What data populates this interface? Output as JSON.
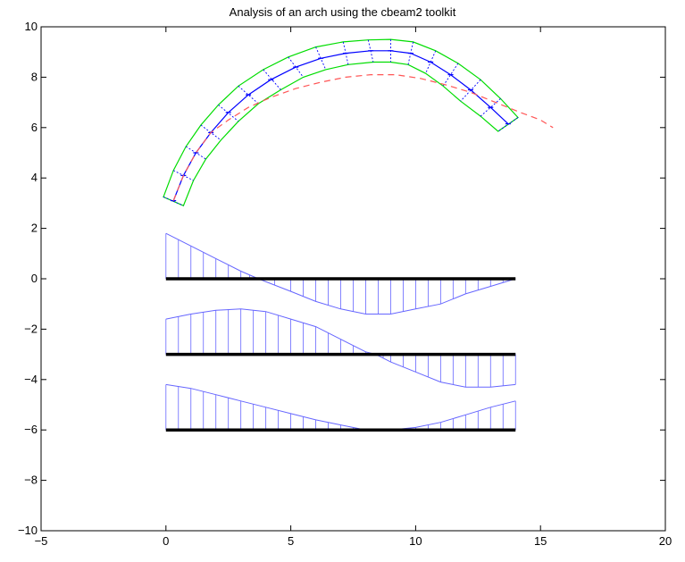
{
  "chart_data": {
    "type": "line",
    "title": "Analysis of an arch using the cbeam2 toolkit",
    "xlabel": "",
    "ylabel": "",
    "xlim": [
      -5,
      20
    ],
    "ylim": [
      -10,
      10
    ],
    "xticks": [
      -5,
      0,
      5,
      10,
      15,
      20
    ],
    "yticks": [
      -10,
      -8,
      -6,
      -4,
      -2,
      0,
      2,
      4,
      6,
      8,
      10
    ],
    "xtick_labels": [
      "−5",
      "0",
      "5",
      "10",
      "15",
      "20"
    ],
    "ytick_labels": [
      "−10",
      "−8",
      "−6",
      "−4",
      "−2",
      "0",
      "2",
      "4",
      "6",
      "8",
      "10"
    ],
    "grid": false,
    "legend": false,
    "colors": {
      "arch_centerline": "#0000ff",
      "arch_outline": "#00dd00",
      "deformed_shape": "#ff5555",
      "diagram": "#6666ff",
      "baseline": "#000000"
    },
    "arch": {
      "centerline": {
        "x": [
          0.3,
          0.7,
          1.2,
          1.8,
          2.5,
          3.3,
          4.2,
          5.2,
          6.2,
          7.2,
          8.2,
          9.0,
          9.8,
          10.6,
          11.4,
          12.2,
          13.0,
          13.7
        ],
        "y": [
          3.1,
          4.1,
          5.0,
          5.8,
          6.6,
          7.3,
          7.9,
          8.4,
          8.75,
          8.95,
          9.05,
          9.05,
          8.95,
          8.6,
          8.1,
          7.5,
          6.8,
          6.15
        ]
      },
      "outer_edge": {
        "x": [
          -0.1,
          0.3,
          0.8,
          1.4,
          2.1,
          2.9,
          3.9,
          4.9,
          6.0,
          7.1,
          8.1,
          9.0,
          9.9,
          10.8,
          11.7,
          12.6,
          13.4,
          14.1
        ],
        "y": [
          3.25,
          4.3,
          5.25,
          6.1,
          6.9,
          7.65,
          8.3,
          8.8,
          9.2,
          9.4,
          9.48,
          9.5,
          9.4,
          9.05,
          8.55,
          7.9,
          7.15,
          6.4
        ]
      },
      "inner_edge": {
        "x": [
          0.7,
          1.1,
          1.6,
          2.2,
          2.9,
          3.7,
          4.6,
          5.5,
          6.4,
          7.3,
          8.3,
          9.0,
          9.7,
          10.4,
          11.1,
          11.8,
          12.6,
          13.3
        ],
        "y": [
          2.9,
          3.9,
          4.75,
          5.5,
          6.25,
          6.95,
          7.5,
          8.0,
          8.3,
          8.5,
          8.6,
          8.6,
          8.5,
          8.15,
          7.65,
          7.05,
          6.45,
          5.85
        ]
      }
    },
    "deformed_shape": {
      "x": [
        0.3,
        0.7,
        1.2,
        1.8,
        2.5,
        3.3,
        4.2,
        5.2,
        6.2,
        7.2,
        8.2,
        9.2,
        10.2,
        11.2,
        12.2,
        13.2,
        14.2,
        15.0,
        15.5
      ],
      "y": [
        3.1,
        4.1,
        5.0,
        5.8,
        6.3,
        6.8,
        7.2,
        7.55,
        7.8,
        8.0,
        8.1,
        8.1,
        7.95,
        7.7,
        7.4,
        7.0,
        6.6,
        6.3,
        6.0
      ]
    },
    "diagrams": [
      {
        "baseline": 0,
        "x": [
          0,
          1,
          2,
          3,
          3.7,
          5,
          6,
          7,
          8,
          9,
          10,
          11,
          12,
          13,
          14
        ],
        "y": [
          1.8,
          1.3,
          0.8,
          0.3,
          0.0,
          -0.5,
          -0.9,
          -1.2,
          -1.4,
          -1.4,
          -1.2,
          -1.0,
          -0.6,
          -0.3,
          0.0
        ]
      },
      {
        "baseline": -3,
        "x": [
          0,
          1,
          2,
          3,
          4,
          5,
          6,
          7,
          8,
          8.4,
          9,
          10,
          11,
          12,
          13,
          14
        ],
        "y": [
          -1.6,
          -1.4,
          -1.25,
          -1.2,
          -1.3,
          -1.6,
          -1.9,
          -2.4,
          -2.9,
          -3.0,
          -3.3,
          -3.7,
          -4.1,
          -4.3,
          -4.3,
          -4.2
        ]
      },
      {
        "baseline": -6,
        "x": [
          0,
          1,
          2,
          3,
          4,
          5,
          6,
          7,
          8,
          9,
          10,
          11,
          12,
          13,
          14
        ],
        "y": [
          -4.2,
          -4.35,
          -4.6,
          -4.85,
          -5.1,
          -5.35,
          -5.6,
          -5.8,
          -6.0,
          -6.0,
          -5.9,
          -5.7,
          -5.4,
          -5.1,
          -4.85
        ]
      }
    ]
  }
}
